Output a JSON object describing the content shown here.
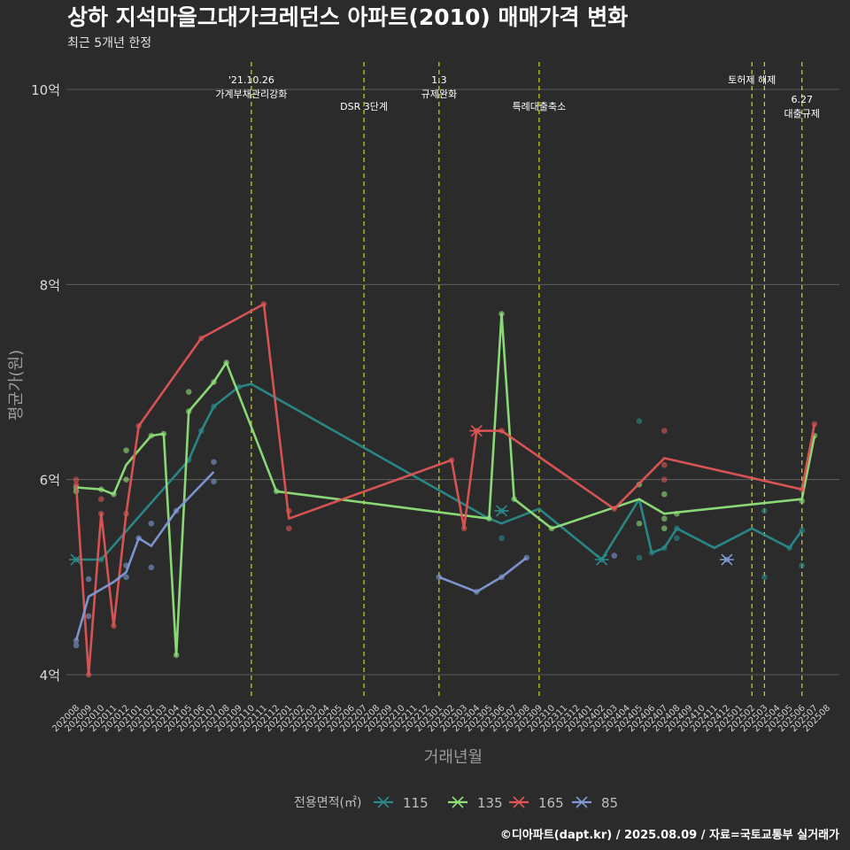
{
  "chart_data": {
    "type": "line",
    "title": "상하 지석마을그대가크레던스 아파트(2010) 매매가격 변화",
    "subtitle": "최근 5개년 한정",
    "xlabel": "거래년월",
    "ylabel": "평균가(원)",
    "caption": "©디아파트(dapt.kr) / 2025.08.09 / 자료=국토교통부 실거래가",
    "y_unit": "억",
    "ylim": [
      3.75,
      10.25
    ],
    "yticks": [
      {
        "value": 4,
        "label": "4억"
      },
      {
        "value": 6,
        "label": "6억"
      },
      {
        "value": 8,
        "label": "8억"
      },
      {
        "value": 10,
        "label": "10억"
      }
    ],
    "x_start": "202008",
    "x_end": "202508",
    "grid": true,
    "legend": {
      "title": "전용면적(㎡)",
      "placement": "bottom"
    },
    "events": [
      {
        "month": "202110",
        "lines": [
          "'21.10.26",
          "가계부채관리강화"
        ],
        "row": 0
      },
      {
        "month": "202207",
        "lines": [
          "DSR 3단계"
        ],
        "row": 1
      },
      {
        "month": "202301",
        "lines": [
          "1.3",
          "규제완화"
        ],
        "row": 0
      },
      {
        "month": "202309",
        "lines": [
          "특례대출축소"
        ],
        "row": 1
      },
      {
        "month": "202502",
        "lines": [
          "토허제 해제"
        ],
        "row": 0
      },
      {
        "month": "202503",
        "lines": [],
        "row": 0
      },
      {
        "month": "202506",
        "lines": [
          "6.27",
          "대출규제"
        ],
        "row": 2
      }
    ],
    "series": [
      {
        "name": "115",
        "color": "#2a8a8a",
        "line": [
          [
            "202008",
            5.18
          ],
          [
            "202010",
            5.18
          ],
          [
            "202105",
            6.2
          ],
          [
            "202106",
            6.5
          ],
          [
            "202107",
            6.75
          ],
          [
            "202109",
            6.95
          ],
          [
            "202110",
            6.98
          ],
          [
            "202305",
            5.6
          ],
          [
            "202306",
            5.55
          ],
          [
            "202309",
            5.7
          ],
          [
            "202402",
            5.18
          ],
          [
            "202405",
            5.8
          ],
          [
            "202406",
            5.25
          ],
          [
            "202407",
            5.3
          ],
          [
            "202408",
            5.5
          ],
          [
            "202411",
            5.3
          ],
          [
            "202502",
            5.5
          ],
          [
            "202505",
            5.3
          ],
          [
            "202506",
            5.48
          ]
        ],
        "points": [
          [
            "202008",
            5.18
          ],
          [
            "202010",
            5.18
          ],
          [
            "202105",
            6.2
          ],
          [
            "202106",
            6.5
          ],
          [
            "202107",
            6.75
          ],
          [
            "202109",
            6.95
          ],
          [
            "202306",
            5.68
          ],
          [
            "202306",
            5.4
          ],
          [
            "202402",
            5.18
          ],
          [
            "202405",
            6.6
          ],
          [
            "202405",
            5.2
          ],
          [
            "202406",
            5.25
          ],
          [
            "202407",
            5.3
          ],
          [
            "202408",
            5.4
          ],
          [
            "202408",
            5.5
          ],
          [
            "202503",
            5.68
          ],
          [
            "202503",
            5.0
          ],
          [
            "202505",
            5.3
          ],
          [
            "202506",
            5.48
          ],
          [
            "202506",
            5.12
          ]
        ],
        "crosses": [
          [
            "202008",
            5.18
          ],
          [
            "202306",
            5.68
          ],
          [
            "202402",
            5.18
          ]
        ]
      },
      {
        "name": "135",
        "color": "#8fe07a",
        "line": [
          [
            "202008",
            5.92
          ],
          [
            "202010",
            5.9
          ],
          [
            "202011",
            5.85
          ],
          [
            "202012",
            6.15
          ],
          [
            "202102",
            6.45
          ],
          [
            "202103",
            6.47
          ],
          [
            "202104",
            4.2
          ],
          [
            "202105",
            6.7
          ],
          [
            "202107",
            7.0
          ],
          [
            "202108",
            7.2
          ],
          [
            "202112",
            5.88
          ],
          [
            "202305",
            5.6
          ],
          [
            "202306",
            7.7
          ],
          [
            "202307",
            5.8
          ],
          [
            "202310",
            5.5
          ],
          [
            "202405",
            5.8
          ],
          [
            "202407",
            5.65
          ],
          [
            "202506",
            5.8
          ],
          [
            "202507",
            6.45
          ]
        ],
        "points": [
          [
            "202008",
            5.92
          ],
          [
            "202008",
            5.88
          ],
          [
            "202010",
            5.9
          ],
          [
            "202011",
            5.85
          ],
          [
            "202012",
            6.3
          ],
          [
            "202012",
            6.0
          ],
          [
            "202102",
            6.45
          ],
          [
            "202103",
            6.47
          ],
          [
            "202104",
            4.2
          ],
          [
            "202105",
            6.7
          ],
          [
            "202105",
            6.9
          ],
          [
            "202107",
            7.0
          ],
          [
            "202108",
            7.2
          ],
          [
            "202112",
            5.88
          ],
          [
            "202305",
            5.6
          ],
          [
            "202306",
            7.7
          ],
          [
            "202307",
            5.8
          ],
          [
            "202310",
            5.5
          ],
          [
            "202405",
            5.95
          ],
          [
            "202405",
            5.55
          ],
          [
            "202407",
            5.85
          ],
          [
            "202407",
            5.6
          ],
          [
            "202407",
            5.5
          ],
          [
            "202408",
            5.65
          ],
          [
            "202506",
            5.78
          ],
          [
            "202507",
            6.45
          ]
        ],
        "crosses": []
      },
      {
        "name": "165",
        "color": "#e05555",
        "line": [
          [
            "202008",
            5.95
          ],
          [
            "202009",
            4.0
          ],
          [
            "202010",
            5.65
          ],
          [
            "202011",
            4.5
          ],
          [
            "202012",
            5.65
          ],
          [
            "202101",
            6.55
          ],
          [
            "202106",
            7.45
          ],
          [
            "202111",
            7.8
          ],
          [
            "202201",
            5.6
          ],
          [
            "202302",
            6.2
          ],
          [
            "202303",
            5.5
          ],
          [
            "202304",
            6.5
          ],
          [
            "202306",
            6.5
          ],
          [
            "202403",
            5.7
          ],
          [
            "202407",
            6.22
          ],
          [
            "202506",
            5.9
          ],
          [
            "202507",
            6.57
          ]
        ],
        "points": [
          [
            "202008",
            6.0
          ],
          [
            "202008",
            5.95
          ],
          [
            "202009",
            4.0
          ],
          [
            "202010",
            5.8
          ],
          [
            "202010",
            5.65
          ],
          [
            "202011",
            4.5
          ],
          [
            "202012",
            5.65
          ],
          [
            "202101",
            6.55
          ],
          [
            "202106",
            7.45
          ],
          [
            "202111",
            7.8
          ],
          [
            "202201",
            5.5
          ],
          [
            "202201",
            5.68
          ],
          [
            "202302",
            6.2
          ],
          [
            "202303",
            5.5
          ],
          [
            "202304",
            6.5
          ],
          [
            "202306",
            6.5
          ],
          [
            "202403",
            5.7
          ],
          [
            "202407",
            6.5
          ],
          [
            "202407",
            6.15
          ],
          [
            "202407",
            6.0
          ],
          [
            "202506",
            5.9
          ],
          [
            "202507",
            6.57
          ]
        ],
        "crosses": [
          [
            "202304",
            6.5
          ]
        ]
      },
      {
        "name": "85",
        "color": "#7f9ad6",
        "line": [
          [
            "202008",
            4.35
          ],
          [
            "202009",
            4.8
          ],
          [
            "202011",
            4.95
          ],
          [
            "202012",
            5.05
          ],
          [
            "202101",
            5.4
          ],
          [
            "202102",
            5.32
          ],
          [
            "202104",
            5.68
          ],
          [
            "202107",
            6.08
          ]
        ],
        "points": [
          [
            "202008",
            4.35
          ],
          [
            "202008",
            4.3
          ],
          [
            "202009",
            4.98
          ],
          [
            "202009",
            4.6
          ],
          [
            "202012",
            5.12
          ],
          [
            "202012",
            5.0
          ],
          [
            "202101",
            5.4
          ],
          [
            "202102",
            5.55
          ],
          [
            "202102",
            5.1
          ],
          [
            "202104",
            5.68
          ],
          [
            "202107",
            6.18
          ],
          [
            "202107",
            5.98
          ]
        ],
        "line2": [
          [
            "202301",
            5.0
          ],
          [
            "202304",
            4.85
          ],
          [
            "202306",
            5.0
          ],
          [
            "202308",
            5.2
          ]
        ],
        "points2": [
          [
            "202301",
            5.0
          ],
          [
            "202304",
            4.85
          ],
          [
            "202306",
            5.0
          ],
          [
            "202308",
            5.2
          ],
          [
            "202403",
            5.22
          ],
          [
            "202412",
            5.18
          ]
        ],
        "crosses": [
          [
            "202412",
            5.18
          ]
        ]
      }
    ]
  }
}
